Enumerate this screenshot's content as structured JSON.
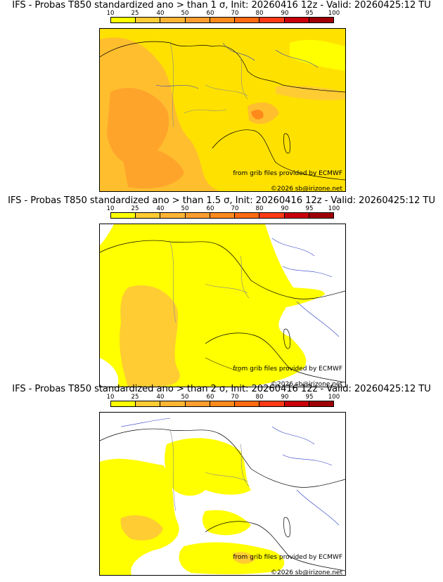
{
  "colorbar": {
    "labels": [
      "10",
      "25",
      "40",
      "50",
      "60",
      "70",
      "80",
      "90",
      "95",
      "100"
    ],
    "colors": [
      "#ffff00",
      "#ffcc33",
      "#ffb533",
      "#ff9d2f",
      "#ff8a1c",
      "#ff6a10",
      "#ff3a15",
      "#c8000a",
      "#9e0005",
      "#6b0000"
    ]
  },
  "panels": [
    {
      "title": "IFS - Probas T850  standardized ano > than 1 σ, Init: 20260416 12z - Valid: 20260425:12 TU",
      "threshold_sigma": 1
    },
    {
      "title": "IFS - Probas T850  standardized ano > than 1.5 σ, Init: 20260416 12z - Valid: 20260425:12 TU",
      "threshold_sigma": 1.5
    },
    {
      "title": "IFS - Probas T850  standardized ano > than 2 σ, Init: 20260416 12z - Valid: 20260425:12 TU",
      "threshold_sigma": 2
    }
  ],
  "credits": {
    "source": "from grib files provided by ECMWF",
    "copyright": "©2026 sb@irizone.net"
  },
  "map_colors": {
    "coast": "#000000",
    "rivers": "#2222cc",
    "borders": "#999999"
  }
}
